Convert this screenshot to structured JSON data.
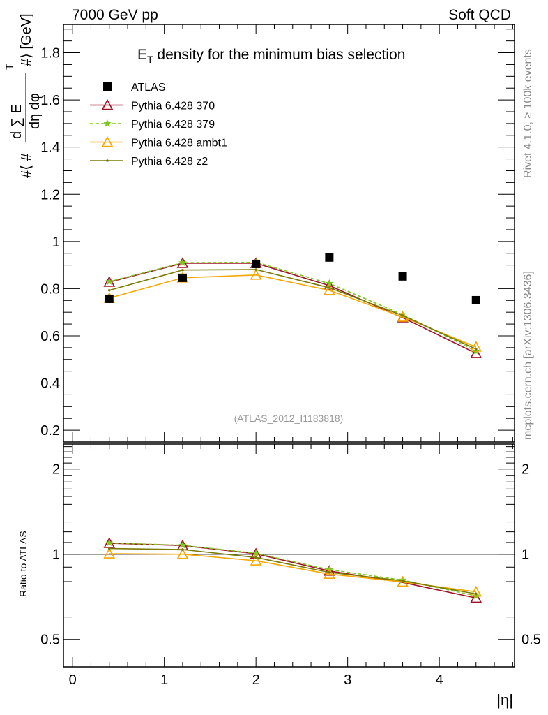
{
  "header": {
    "left": "7000 GeV pp",
    "right": "Soft QCD"
  },
  "side_labels": {
    "rivet": "Rivet 4.1.0, ≥ 100k events",
    "mcplots": "mcplots.cern.ch [arXiv:1306.3436]"
  },
  "watermark": "(ATLAS_2012_I1183818)",
  "chart_data": [
    {
      "type": "line",
      "title": "E_T density  for the minimum bias selection",
      "title_main": "E",
      "title_sub": "T",
      "title_rest": " density  for the minimum bias selection",
      "xlabel": "|η|",
      "ylabel": "#⟨ # d∑E_T / dη dφ #⟩ [GeV]",
      "ylabel_parts": {
        "open": "#⟨ #",
        "num": "d ∑ E",
        "sub": "T",
        "den": "dη dφ",
        "close": "#⟩ [GeV]"
      },
      "xlim": [
        -0.1,
        4.82
      ],
      "ylim": [
        0.15,
        1.92
      ],
      "yticks": [
        "0.2",
        "0.4",
        "0.6",
        "0.8",
        "1",
        "1.2",
        "1.4",
        "1.6",
        "1.8"
      ],
      "x": [
        0.4,
        1.2,
        2.0,
        2.8,
        3.6,
        4.4
      ],
      "legend_position": "top-left",
      "series": [
        {
          "name": "ATLAS",
          "color": "#000000",
          "marker": "square",
          "values": [
            0.757,
            0.846,
            0.905,
            0.932,
            0.852,
            0.751
          ]
        },
        {
          "name": "Pythia 6.428 370",
          "color": "#a0102a",
          "marker": "triangle",
          "dashed": false,
          "values": [
            0.828,
            0.908,
            0.908,
            0.813,
            0.677,
            0.526
          ]
        },
        {
          "name": "Pythia 6.428 379",
          "color": "#7ec81e",
          "marker": "star",
          "dashed": true,
          "values": [
            0.83,
            0.91,
            0.912,
            0.822,
            0.69,
            0.535
          ]
        },
        {
          "name": "Pythia 6.428 ambt1",
          "color": "#f5a800",
          "marker": "triangle",
          "dashed": false,
          "values": [
            0.76,
            0.846,
            0.858,
            0.793,
            0.68,
            0.553
          ]
        },
        {
          "name": "Pythia 6.428 z2",
          "color": "#7a7a00",
          "marker": "dot",
          "dashed": false,
          "values": [
            0.793,
            0.879,
            0.881,
            0.804,
            0.686,
            0.544
          ]
        }
      ]
    },
    {
      "type": "line",
      "title": "",
      "ylabel": "Ratio to ATLAS",
      "xlabel": "|η|",
      "yscale": "log",
      "ylim": [
        0.4,
        2.45
      ],
      "yticks": [
        "0.5",
        "1",
        "2"
      ],
      "xticks": [
        "0",
        "1",
        "2",
        "3",
        "4"
      ],
      "reference": "ATLAS"
    }
  ]
}
